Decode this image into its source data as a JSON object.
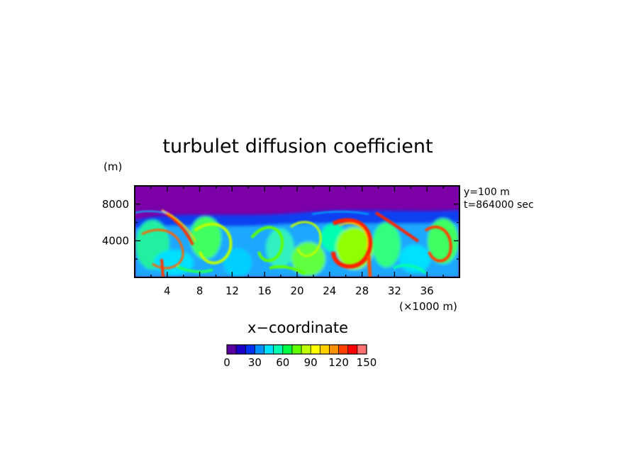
{
  "chart_data": {
    "type": "heatmap",
    "title": "turbulet diffusion coefficient",
    "xlabel": "x−coordinate",
    "x_unit": "(×1000 m)",
    "y_unit": "(m)",
    "xlim": [
      0,
      40
    ],
    "ylim": [
      0,
      10000
    ],
    "x_ticks": [
      4,
      8,
      12,
      16,
      20,
      24,
      28,
      32,
      36
    ],
    "x_tick_labels": [
      "4",
      "8",
      "12",
      "16",
      "20",
      "24",
      "28",
      "32",
      "36"
    ],
    "y_ticks": [
      4000,
      8000
    ],
    "y_tick_labels": [
      "4000",
      "8000"
    ],
    "annotations": [
      "y=100 m",
      "t=864000 sec"
    ],
    "colorbar": {
      "min": 0,
      "max": 150,
      "step": 10,
      "tick_values": [
        0,
        30,
        60,
        90,
        120,
        150
      ],
      "tick_labels": [
        "0",
        "30",
        "60",
        "90",
        "120",
        "150"
      ],
      "colors": [
        "#5a00a0",
        "#1a00c8",
        "#0030f0",
        "#0090ff",
        "#00e0ff",
        "#00ffb0",
        "#00ff40",
        "#60ff00",
        "#c0ff00",
        "#ffff00",
        "#ffd000",
        "#ff9000",
        "#ff4000",
        "#ff0000",
        "#ff7070"
      ]
    },
    "background_color": "#7b00a8"
  }
}
